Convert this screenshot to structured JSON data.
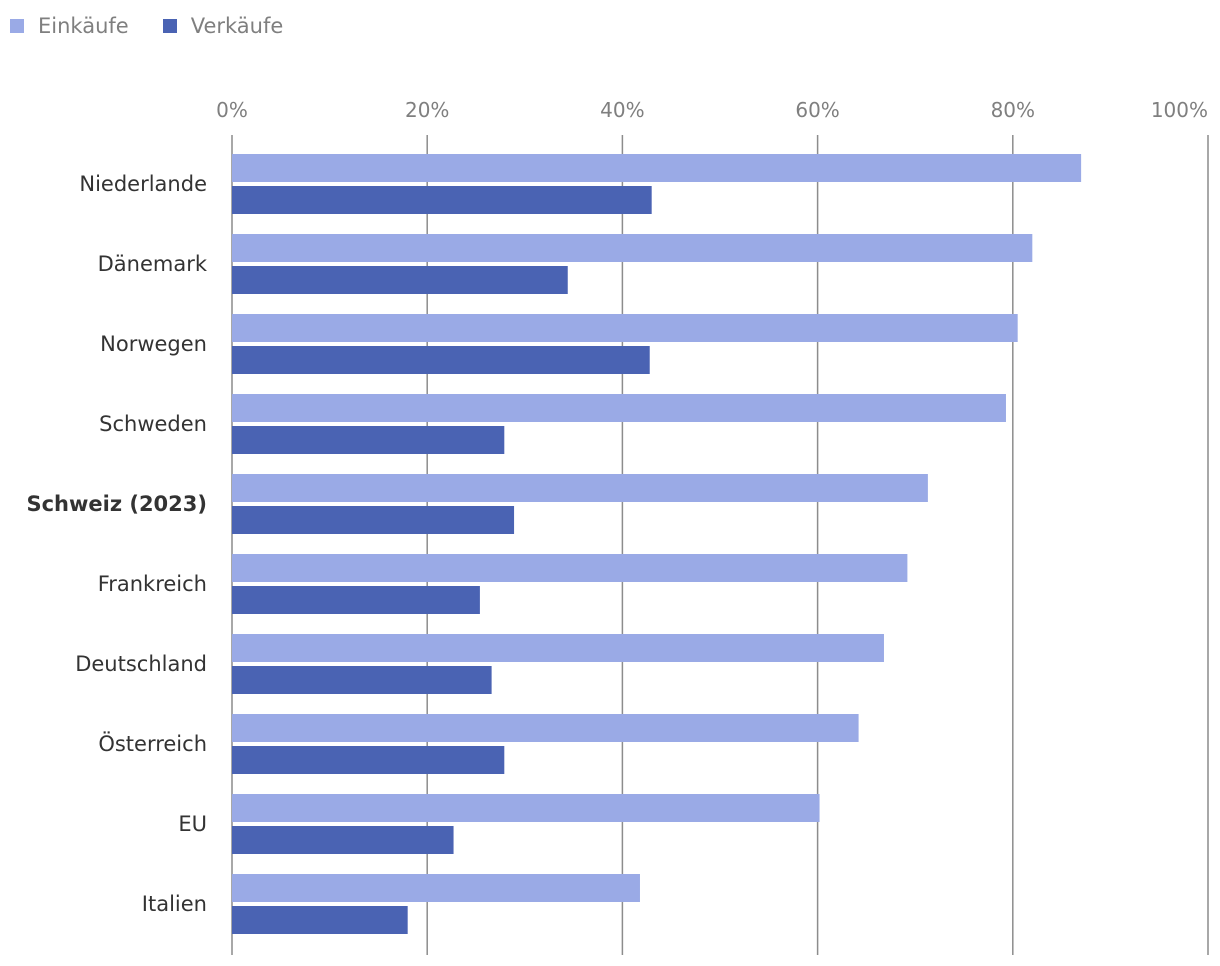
{
  "chart_data": {
    "type": "bar",
    "orientation": "horizontal",
    "categories": [
      "Niederlande",
      "Dänemark",
      "Norwegen",
      "Schweden",
      "Schweiz (2023)",
      "Frankreich",
      "Deutschland",
      "Österreich",
      "EU",
      "Italien"
    ],
    "highlight_category": "Schweiz (2023)",
    "series": [
      {
        "name": "Einkäufe",
        "color": "#9aaae6",
        "values": [
          87,
          82,
          80.5,
          79.3,
          71.3,
          69.2,
          66.8,
          64.2,
          60.2,
          41.8
        ]
      },
      {
        "name": "Verkäufe",
        "color": "#4a63b3",
        "values": [
          43,
          34.4,
          42.8,
          27.9,
          28.9,
          25.4,
          26.6,
          27.9,
          22.7,
          18
        ]
      }
    ],
    "xlim": [
      0,
      100
    ],
    "xticks": [
      0,
      20,
      40,
      60,
      80,
      100
    ],
    "tick_suffix": "%",
    "grid": true,
    "legend_position": "top-left"
  },
  "legend": {
    "items": [
      {
        "label": "Einkäufe",
        "color": "#9aaae6"
      },
      {
        "label": "Verkäufe",
        "color": "#4a63b3"
      }
    ]
  }
}
